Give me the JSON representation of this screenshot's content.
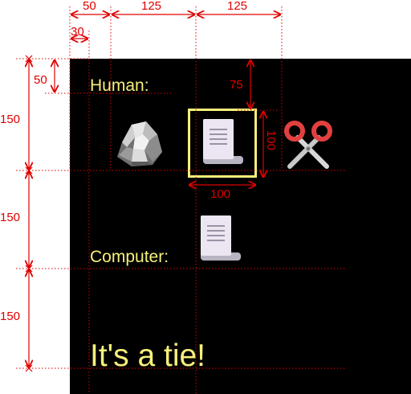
{
  "game": {
    "human_label": "Human:",
    "computer_label": "Computer:",
    "result": "It's a tie!",
    "text_color": "#f7f07a",
    "background_color": "#000000",
    "selection_color": "#f7f07a"
  },
  "choices": [
    {
      "name": "rock",
      "icon": "rock-icon"
    },
    {
      "name": "paper",
      "icon": "paper-scroll-icon",
      "selected": true
    },
    {
      "name": "scissors",
      "icon": "scissors-icon"
    }
  ],
  "computer_choice": {
    "name": "paper",
    "icon": "paper-scroll-icon"
  },
  "dimensions": {
    "color": "#e00000",
    "top_left_offset": "50",
    "top_left_inner": "30",
    "top_spacing_1": "125",
    "top_spacing_2": "125",
    "human_label_offset": "50",
    "paper_top_offset": "75",
    "row_1": "150",
    "row_2": "150",
    "row_3": "150",
    "icon_height": "100",
    "icon_width": "100"
  }
}
